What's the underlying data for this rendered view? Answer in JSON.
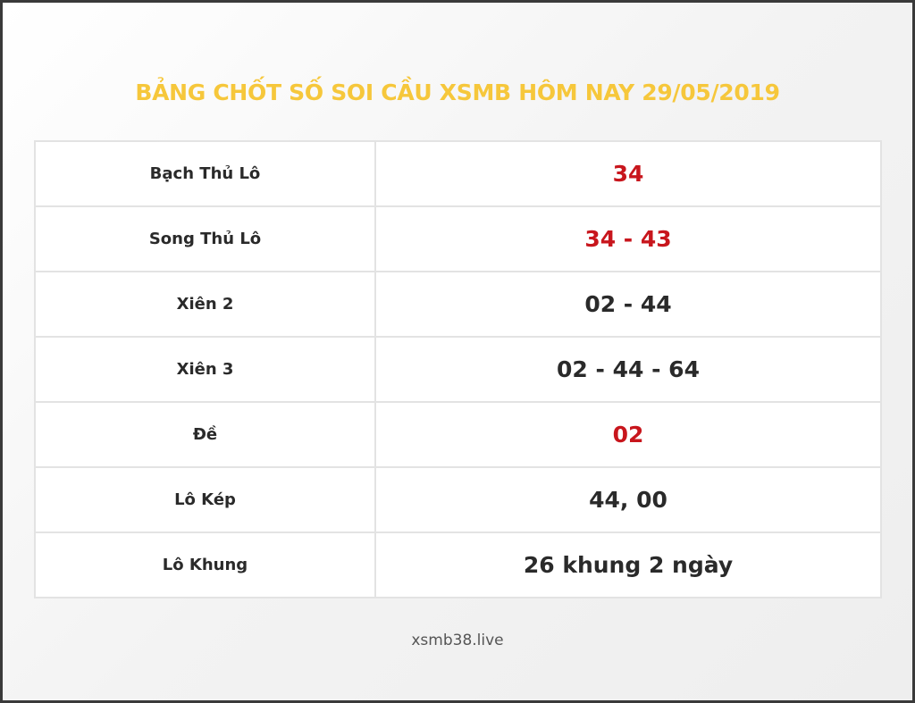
{
  "title": "BẢNG CHỐT SỐ SOI CẦU XSMB HÔM NAY 29/05/2019",
  "colors": {
    "title": "#f6c73b",
    "highlight": "#c8161d",
    "text": "#2a2a2a"
  },
  "rows": [
    {
      "label": "Bạch Thủ Lô",
      "value": "34",
      "highlight": true
    },
    {
      "label": "Song Thủ Lô",
      "value": "34 - 43",
      "highlight": true
    },
    {
      "label": "Xiên 2",
      "value": "02 - 44",
      "highlight": false
    },
    {
      "label": "Xiên 3",
      "value": "02 - 44 - 64",
      "highlight": false
    },
    {
      "label": "Đề",
      "value": "02",
      "highlight": true
    },
    {
      "label": "Lô Kép",
      "value": "44, 00",
      "highlight": false
    },
    {
      "label": "Lô Khung",
      "value": "26 khung 2 ngày",
      "highlight": false
    }
  ],
  "footer": "xsmb38.live"
}
